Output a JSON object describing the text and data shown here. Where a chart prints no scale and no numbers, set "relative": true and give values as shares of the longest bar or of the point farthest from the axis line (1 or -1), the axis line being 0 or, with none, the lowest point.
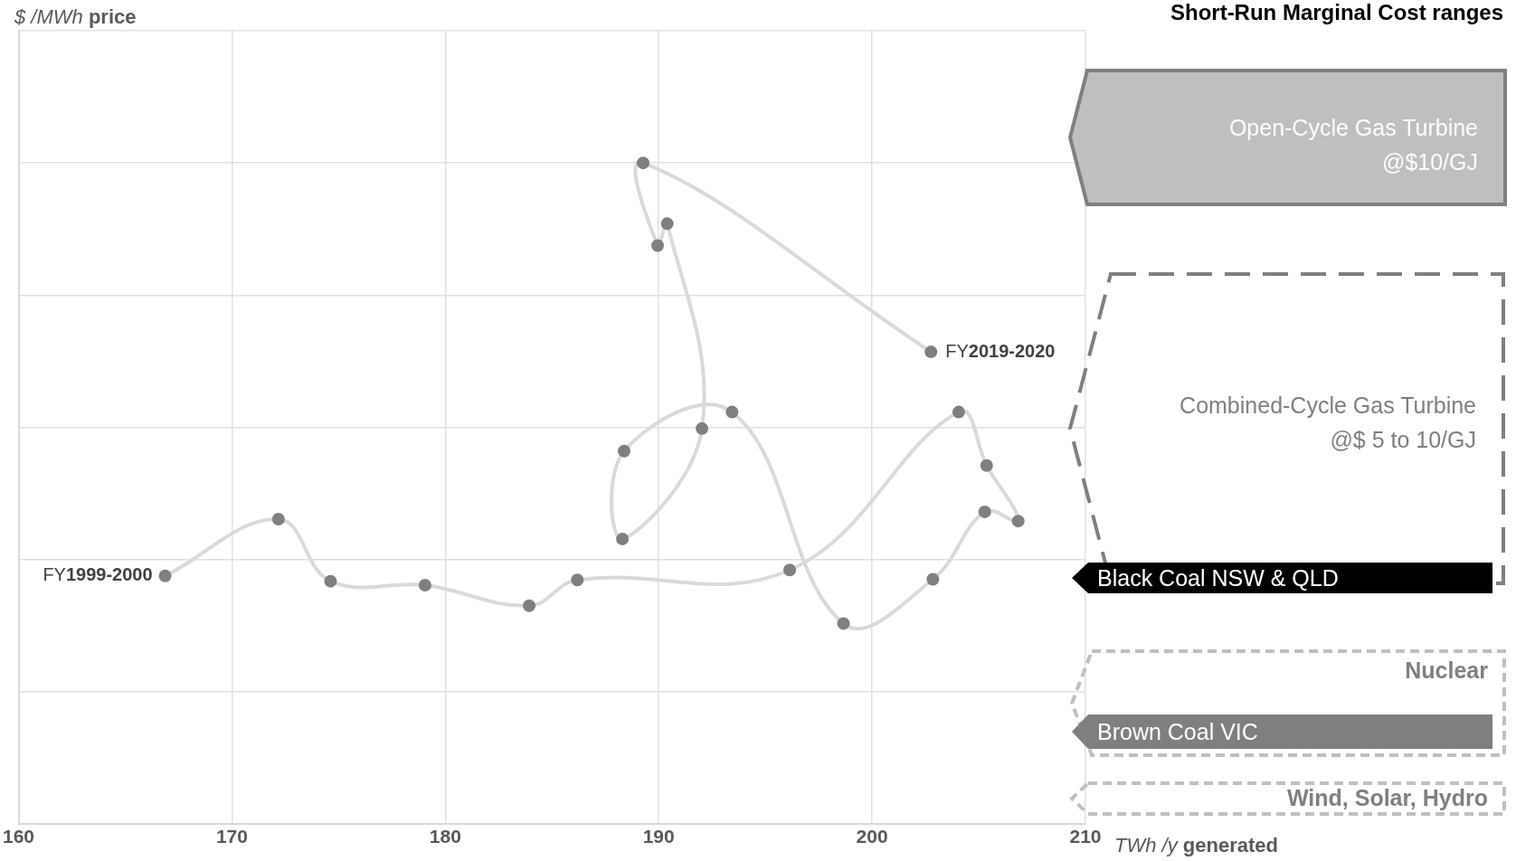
{
  "chart_data": {
    "type": "line",
    "xlabel": "TWh /y generated",
    "relative": true,
    "xlim": [
      160,
      210
    ],
    "xticks": [
      160,
      170,
      180,
      190,
      200,
      210
    ],
    "grid": true,
    "marker": "circle",
    "line_style": "solid",
    "series": [
      {
        "color": "#d9d9d9",
        "colors": [
          "#7f7f7f",
          "#7f7f7f",
          "#7f7f7f",
          "#7f7f7f",
          "#7f7f7f",
          "#7f7f7f",
          "#7f7f7f",
          "#7f7f7f",
          "#7f7f7f",
          "#7f7f7f",
          "#7f7f7f",
          "#7f7f7f",
          "#7f7f7f",
          "#7f7f7f",
          "#7f7f7f",
          "#7f7f7f",
          "#7f7f7f",
          "#7f7f7f",
          "#7f7f7f",
          "#7f7f7f",
          "#7f7f7f"
        ],
        "x": [
          166.87,
          172.18,
          174.62,
          179.05,
          183.93,
          186.19,
          196.14,
          204.06,
          205.37,
          206.85,
          205.28,
          202.85,
          198.66,
          193.44,
          188.38,
          188.3,
          192.03,
          190.4,
          189.95,
          189.27,
          202.76
        ],
        "values": [
          0.375,
          0.461,
          0.367,
          0.361,
          0.33,
          0.369,
          0.384,
          0.623,
          0.542,
          0.458,
          0.472,
          0.37,
          0.303,
          0.623,
          0.564,
          0.431,
          0.598,
          0.908,
          0.875,
          1,
          0.714
        ]
      }
    ],
    "annotations": [
      {
        "text": "FY1999-2000",
        "x": 166.87,
        "y": 0.375
      },
      {
        "text": "FY2019-2020",
        "x": 202.76,
        "y": 0.714
      },
      "$ /MWh price",
      "Short-Run Marginal Cost ranges",
      "Open-Cycle Gas Turbine\n@$10/GJ",
      "Combined-Cycle Gas Turbine\n@$ 5 to 10/GJ",
      "Black Coal NSW & QLD",
      "Nuclear",
      "Brown Coal VIC",
      "Wind, Solar, Hydro"
    ]
  }
}
